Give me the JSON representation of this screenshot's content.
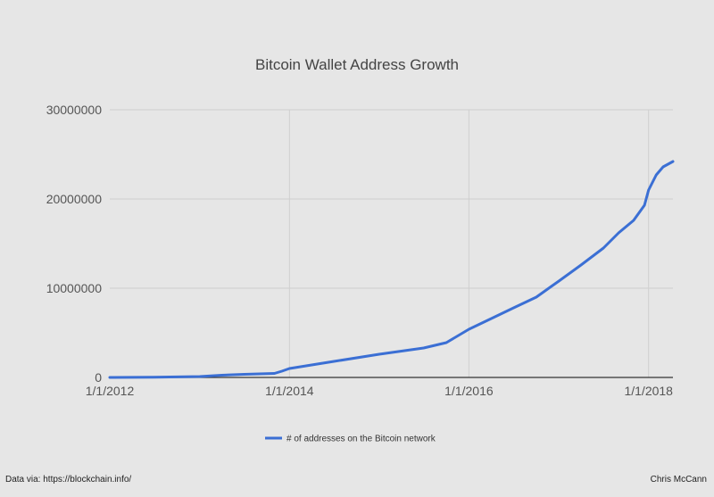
{
  "chart_data": {
    "type": "line",
    "title": "Bitcoin Wallet Address Growth",
    "xlabel": "",
    "ylabel": "",
    "x_axis": {
      "type": "date",
      "range": [
        "2012-01-01",
        "2018-04-10"
      ],
      "ticks": [
        "2012-01-01",
        "2014-01-01",
        "2016-01-01",
        "2018-01-01"
      ],
      "tick_labels": [
        "1/1/2012",
        "1/1/2014",
        "1/1/2016",
        "1/1/2018"
      ]
    },
    "y_axis": {
      "range": [
        0,
        30000000
      ],
      "ticks": [
        0,
        10000000,
        20000000,
        30000000
      ],
      "tick_labels": [
        "0",
        "10000000",
        "20000000",
        "30000000"
      ]
    },
    "grid": "vertical-and-horizontal",
    "legend_position": "bottom",
    "series": [
      {
        "name": "# of addresses on the Bitcoin network",
        "color": "#3b6fd4",
        "x": [
          "2012-01-01",
          "2012-07-01",
          "2013-01-01",
          "2013-04-01",
          "2013-07-01",
          "2013-11-01",
          "2013-12-01",
          "2014-01-01",
          "2014-07-01",
          "2015-01-01",
          "2015-07-01",
          "2015-10-01",
          "2016-01-01",
          "2016-04-01",
          "2016-07-01",
          "2016-10-01",
          "2016-12-01",
          "2017-01-01",
          "2017-04-01",
          "2017-07-01",
          "2017-09-01",
          "2017-11-01",
          "2017-12-15",
          "2018-01-01",
          "2018-02-01",
          "2018-03-01",
          "2018-04-10"
        ],
        "values": [
          0,
          30000,
          100000,
          250000,
          350000,
          450000,
          700000,
          1000000,
          1800000,
          2600000,
          3300000,
          3900000,
          5400000,
          6600000,
          7800000,
          9000000,
          10200000,
          10800000,
          12600000,
          14500000,
          16200000,
          17600000,
          19300000,
          21000000,
          22700000,
          23600000,
          24200000
        ]
      }
    ]
  },
  "footer": {
    "source": "Data via: https://blockchain.info/",
    "author": "Chris McCann"
  }
}
